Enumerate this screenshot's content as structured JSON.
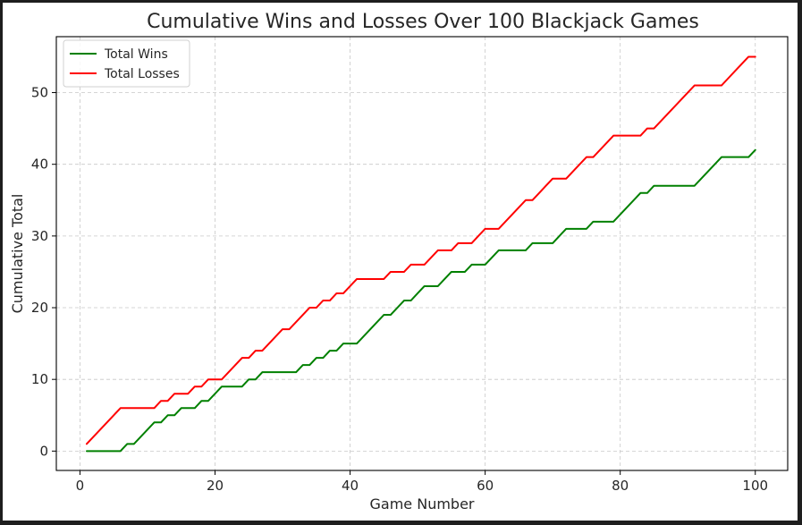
{
  "chart_data": {
    "type": "line",
    "title": "Cumulative Wins and Losses Over 100 Blackjack Games",
    "xlabel": "Game Number",
    "ylabel": "Cumulative Total",
    "xlim": [
      -3.5,
      104.8
    ],
    "ylim": [
      -2.7,
      57.8
    ],
    "xticks": [
      0,
      20,
      40,
      60,
      80,
      100
    ],
    "yticks": [
      0,
      10,
      20,
      30,
      40,
      50
    ],
    "grid": true,
    "legend_position": "top-left",
    "series": [
      {
        "name": "Total Wins",
        "color": "#008000",
        "x": [
          1,
          2,
          3,
          4,
          5,
          6,
          7,
          8,
          9,
          10,
          11,
          12,
          13,
          14,
          15,
          16,
          17,
          18,
          19,
          20,
          21,
          22,
          23,
          24,
          25,
          26,
          27,
          28,
          29,
          30,
          31,
          32,
          33,
          34,
          35,
          36,
          37,
          38,
          39,
          40,
          41,
          42,
          43,
          44,
          45,
          46,
          47,
          48,
          49,
          50,
          51,
          52,
          53,
          54,
          55,
          56,
          57,
          58,
          59,
          60,
          61,
          62,
          63,
          64,
          65,
          66,
          67,
          68,
          69,
          70,
          71,
          72,
          73,
          74,
          75,
          76,
          77,
          78,
          79,
          80,
          81,
          82,
          83,
          84,
          85,
          86,
          87,
          88,
          89,
          90,
          91,
          92,
          93,
          94,
          95,
          96,
          97,
          98,
          99,
          100
        ],
        "y": [
          0,
          0,
          0,
          0,
          0,
          0,
          1,
          1,
          2,
          3,
          4,
          4,
          5,
          5,
          6,
          6,
          6,
          7,
          7,
          8,
          9,
          9,
          9,
          9,
          10,
          10,
          11,
          11,
          11,
          11,
          11,
          11,
          12,
          12,
          13,
          13,
          14,
          14,
          15,
          15,
          15,
          16,
          17,
          18,
          19,
          19,
          20,
          21,
          21,
          22,
          23,
          23,
          23,
          24,
          25,
          25,
          25,
          26,
          26,
          26,
          27,
          28,
          28,
          28,
          28,
          28,
          29,
          29,
          29,
          29,
          30,
          31,
          31,
          31,
          31,
          32,
          32,
          32,
          32,
          33,
          34,
          35,
          36,
          36,
          37,
          37,
          37,
          37,
          37,
          37,
          37,
          38,
          39,
          40,
          41,
          41,
          41,
          41,
          41,
          42
        ]
      },
      {
        "name": "Total Losses",
        "color": "#ff0000",
        "x": [
          1,
          2,
          3,
          4,
          5,
          6,
          7,
          8,
          9,
          10,
          11,
          12,
          13,
          14,
          15,
          16,
          17,
          18,
          19,
          20,
          21,
          22,
          23,
          24,
          25,
          26,
          27,
          28,
          29,
          30,
          31,
          32,
          33,
          34,
          35,
          36,
          37,
          38,
          39,
          40,
          41,
          42,
          43,
          44,
          45,
          46,
          47,
          48,
          49,
          50,
          51,
          52,
          53,
          54,
          55,
          56,
          57,
          58,
          59,
          60,
          61,
          62,
          63,
          64,
          65,
          66,
          67,
          68,
          69,
          70,
          71,
          72,
          73,
          74,
          75,
          76,
          77,
          78,
          79,
          80,
          81,
          82,
          83,
          84,
          85,
          86,
          87,
          88,
          89,
          90,
          91,
          92,
          93,
          94,
          95,
          96,
          97,
          98,
          99,
          100
        ],
        "y": [
          1,
          2,
          3,
          4,
          5,
          6,
          6,
          6,
          6,
          6,
          6,
          7,
          7,
          8,
          8,
          8,
          9,
          9,
          10,
          10,
          10,
          11,
          12,
          13,
          13,
          14,
          14,
          15,
          16,
          17,
          17,
          18,
          19,
          20,
          20,
          21,
          21,
          22,
          22,
          23,
          24,
          24,
          24,
          24,
          24,
          25,
          25,
          25,
          26,
          26,
          26,
          27,
          28,
          28,
          28,
          29,
          29,
          29,
          30,
          31,
          31,
          31,
          32,
          33,
          34,
          35,
          35,
          36,
          37,
          38,
          38,
          38,
          39,
          40,
          41,
          41,
          42,
          43,
          44,
          44,
          44,
          44,
          44,
          45,
          45,
          46,
          47,
          48,
          49,
          50,
          51,
          51,
          51,
          51,
          51,
          52,
          53,
          54,
          55,
          55
        ]
      }
    ]
  }
}
